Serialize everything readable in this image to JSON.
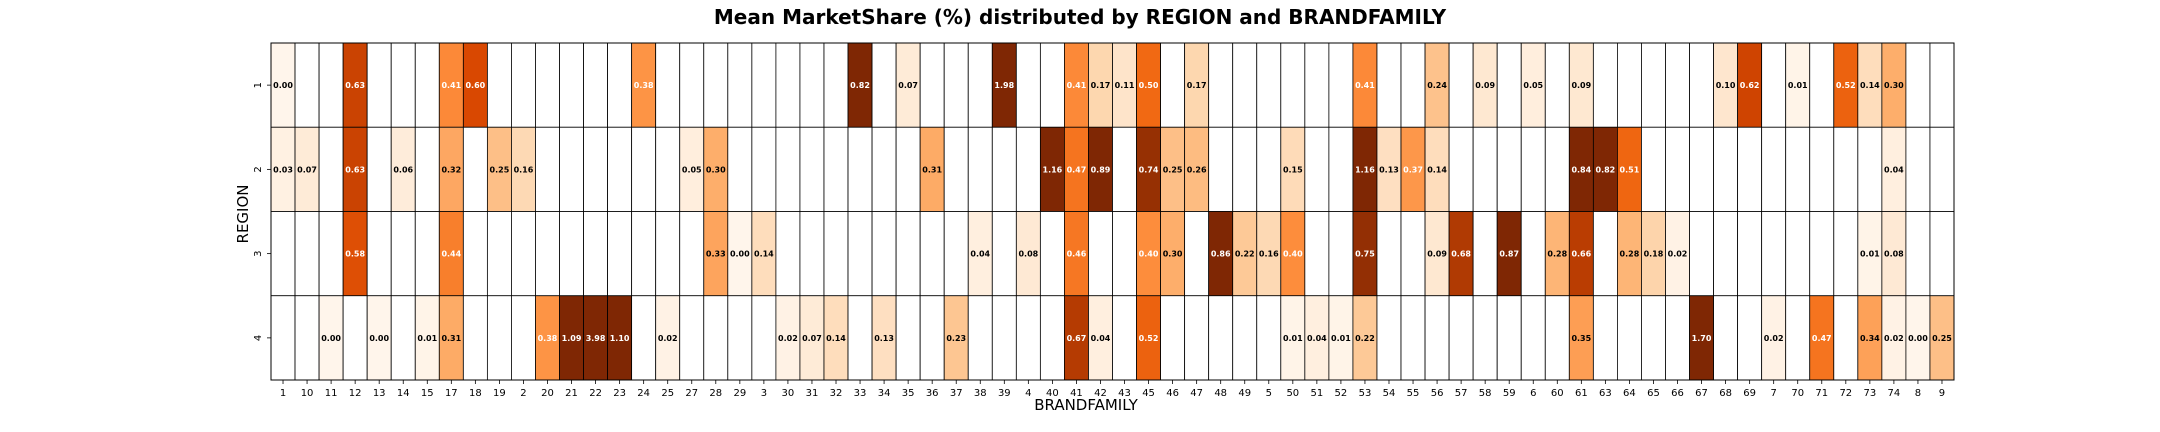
{
  "chart_data": {
    "type": "heatmap",
    "title": "Mean MarketShare (%) distributed by REGION and BRANDFAMILY",
    "xlabel": "BRANDFAMILY",
    "ylabel": "REGION",
    "x_categories": [
      "1",
      "10",
      "11",
      "12",
      "13",
      "14",
      "15",
      "17",
      "18",
      "19",
      "2",
      "20",
      "21",
      "22",
      "23",
      "24",
      "25",
      "27",
      "28",
      "29",
      "3",
      "30",
      "31",
      "32",
      "33",
      "34",
      "35",
      "36",
      "37",
      "38",
      "39",
      "4",
      "40",
      "41",
      "42",
      "43",
      "45",
      "46",
      "47",
      "48",
      "49",
      "5",
      "50",
      "51",
      "52",
      "53",
      "54",
      "55",
      "56",
      "57",
      "58",
      "59",
      "6",
      "60",
      "61",
      "63",
      "64",
      "65",
      "66",
      "67",
      "68",
      "69",
      "7",
      "70",
      "71",
      "72",
      "73",
      "74",
      "8",
      "9"
    ],
    "y_categories": [
      "1",
      "2",
      "3",
      "4"
    ],
    "cells": [
      {
        "x": "1",
        "y": "1",
        "v": "0.00"
      },
      {
        "x": "12",
        "y": "1",
        "v": "0.63"
      },
      {
        "x": "17",
        "y": "1",
        "v": "0.41"
      },
      {
        "x": "18",
        "y": "1",
        "v": "0.60"
      },
      {
        "x": "24",
        "y": "1",
        "v": "0.38"
      },
      {
        "x": "33",
        "y": "1",
        "v": "0.82"
      },
      {
        "x": "35",
        "y": "1",
        "v": "0.07"
      },
      {
        "x": "39",
        "y": "1",
        "v": "1.98"
      },
      {
        "x": "41",
        "y": "1",
        "v": "0.41"
      },
      {
        "x": "42",
        "y": "1",
        "v": "0.17"
      },
      {
        "x": "43",
        "y": "1",
        "v": "0.11"
      },
      {
        "x": "45",
        "y": "1",
        "v": "0.50"
      },
      {
        "x": "47",
        "y": "1",
        "v": "0.17"
      },
      {
        "x": "53",
        "y": "1",
        "v": "0.41"
      },
      {
        "x": "56",
        "y": "1",
        "v": "0.24"
      },
      {
        "x": "58",
        "y": "1",
        "v": "0.09"
      },
      {
        "x": "6",
        "y": "1",
        "v": "0.05"
      },
      {
        "x": "61",
        "y": "1",
        "v": "0.09"
      },
      {
        "x": "68",
        "y": "1",
        "v": "0.10"
      },
      {
        "x": "69",
        "y": "1",
        "v": "0.62"
      },
      {
        "x": "70",
        "y": "1",
        "v": "0.01"
      },
      {
        "x": "72",
        "y": "1",
        "v": "0.52"
      },
      {
        "x": "73",
        "y": "1",
        "v": "0.14"
      },
      {
        "x": "74",
        "y": "1",
        "v": "0.30"
      },
      {
        "x": "1",
        "y": "2",
        "v": "0.03"
      },
      {
        "x": "10",
        "y": "2",
        "v": "0.07"
      },
      {
        "x": "12",
        "y": "2",
        "v": "0.63"
      },
      {
        "x": "14",
        "y": "2",
        "v": "0.06"
      },
      {
        "x": "17",
        "y": "2",
        "v": "0.32"
      },
      {
        "x": "19",
        "y": "2",
        "v": "0.25"
      },
      {
        "x": "2",
        "y": "2",
        "v": "0.16"
      },
      {
        "x": "27",
        "y": "2",
        "v": "0.05"
      },
      {
        "x": "28",
        "y": "2",
        "v": "0.30"
      },
      {
        "x": "36",
        "y": "2",
        "v": "0.31"
      },
      {
        "x": "40",
        "y": "2",
        "v": "1.16"
      },
      {
        "x": "41",
        "y": "2",
        "v": "0.47"
      },
      {
        "x": "42",
        "y": "2",
        "v": "0.89"
      },
      {
        "x": "45",
        "y": "2",
        "v": "0.74"
      },
      {
        "x": "46",
        "y": "2",
        "v": "0.25"
      },
      {
        "x": "47",
        "y": "2",
        "v": "0.26"
      },
      {
        "x": "50",
        "y": "2",
        "v": "0.15"
      },
      {
        "x": "53",
        "y": "2",
        "v": "1.16"
      },
      {
        "x": "54",
        "y": "2",
        "v": "0.13"
      },
      {
        "x": "55",
        "y": "2",
        "v": "0.37"
      },
      {
        "x": "56",
        "y": "2",
        "v": "0.14"
      },
      {
        "x": "61",
        "y": "2",
        "v": "0.84"
      },
      {
        "x": "63",
        "y": "2",
        "v": "0.82"
      },
      {
        "x": "64",
        "y": "2",
        "v": "0.51"
      },
      {
        "x": "74",
        "y": "2",
        "v": "0.04"
      },
      {
        "x": "12",
        "y": "3",
        "v": "0.58"
      },
      {
        "x": "17",
        "y": "3",
        "v": "0.44"
      },
      {
        "x": "28",
        "y": "3",
        "v": "0.33"
      },
      {
        "x": "29",
        "y": "3",
        "v": "0.00"
      },
      {
        "x": "3",
        "y": "3",
        "v": "0.14"
      },
      {
        "x": "38",
        "y": "3",
        "v": "0.04"
      },
      {
        "x": "4",
        "y": "3",
        "v": "0.08"
      },
      {
        "x": "41",
        "y": "3",
        "v": "0.46"
      },
      {
        "x": "45",
        "y": "3",
        "v": "0.40"
      },
      {
        "x": "46",
        "y": "3",
        "v": "0.30"
      },
      {
        "x": "48",
        "y": "3",
        "v": "0.86"
      },
      {
        "x": "49",
        "y": "3",
        "v": "0.22"
      },
      {
        "x": "5",
        "y": "3",
        "v": "0.16"
      },
      {
        "x": "50",
        "y": "3",
        "v": "0.40"
      },
      {
        "x": "53",
        "y": "3",
        "v": "0.75"
      },
      {
        "x": "56",
        "y": "3",
        "v": "0.09"
      },
      {
        "x": "57",
        "y": "3",
        "v": "0.68"
      },
      {
        "x": "59",
        "y": "3",
        "v": "0.87"
      },
      {
        "x": "60",
        "y": "3",
        "v": "0.28"
      },
      {
        "x": "61",
        "y": "3",
        "v": "0.66"
      },
      {
        "x": "64",
        "y": "3",
        "v": "0.28"
      },
      {
        "x": "65",
        "y": "3",
        "v": "0.18"
      },
      {
        "x": "66",
        "y": "3",
        "v": "0.02"
      },
      {
        "x": "73",
        "y": "3",
        "v": "0.01"
      },
      {
        "x": "74",
        "y": "3",
        "v": "0.08"
      },
      {
        "x": "11",
        "y": "4",
        "v": "0.00"
      },
      {
        "x": "13",
        "y": "4",
        "v": "0.00"
      },
      {
        "x": "15",
        "y": "4",
        "v": "0.01"
      },
      {
        "x": "17",
        "y": "4",
        "v": "0.31"
      },
      {
        "x": "20",
        "y": "4",
        "v": "0.38"
      },
      {
        "x": "21",
        "y": "4",
        "v": "1.09"
      },
      {
        "x": "22",
        "y": "4",
        "v": "3.98"
      },
      {
        "x": "23",
        "y": "4",
        "v": "1.10"
      },
      {
        "x": "25",
        "y": "4",
        "v": "0.02"
      },
      {
        "x": "30",
        "y": "4",
        "v": "0.02"
      },
      {
        "x": "31",
        "y": "4",
        "v": "0.07"
      },
      {
        "x": "32",
        "y": "4",
        "v": "0.14"
      },
      {
        "x": "34",
        "y": "4",
        "v": "0.13"
      },
      {
        "x": "37",
        "y": "4",
        "v": "0.23"
      },
      {
        "x": "41",
        "y": "4",
        "v": "0.67"
      },
      {
        "x": "42",
        "y": "4",
        "v": "0.04"
      },
      {
        "x": "45",
        "y": "4",
        "v": "0.52"
      },
      {
        "x": "50",
        "y": "4",
        "v": "0.01"
      },
      {
        "x": "51",
        "y": "4",
        "v": "0.04"
      },
      {
        "x": "52",
        "y": "4",
        "v": "0.01"
      },
      {
        "x": "53",
        "y": "4",
        "v": "0.22"
      },
      {
        "x": "61",
        "y": "4",
        "v": "0.35"
      },
      {
        "x": "67",
        "y": "4",
        "v": "1.70"
      },
      {
        "x": "7",
        "y": "4",
        "v": "0.02"
      },
      {
        "x": "71",
        "y": "4",
        "v": "0.47"
      },
      {
        "x": "73",
        "y": "4",
        "v": "0.34"
      },
      {
        "x": "74",
        "y": "4",
        "v": "0.02"
      },
      {
        "x": "8",
        "y": "4",
        "v": "0.00"
      },
      {
        "x": "9",
        "y": "4",
        "v": "0.25"
      }
    ],
    "colormap": "Oranges",
    "color_range": [
      0,
      0.8
    ],
    "colors": {
      "scale": [
        "#fff5eb",
        "#fee6ce",
        "#fdd0a2",
        "#fdae6b",
        "#fd8d3c",
        "#f16913",
        "#d94801",
        "#a63603",
        "#7f2704"
      ],
      "grid_line": "#000000",
      "text_dark": "#000000",
      "text_light": "#ffffff"
    }
  }
}
